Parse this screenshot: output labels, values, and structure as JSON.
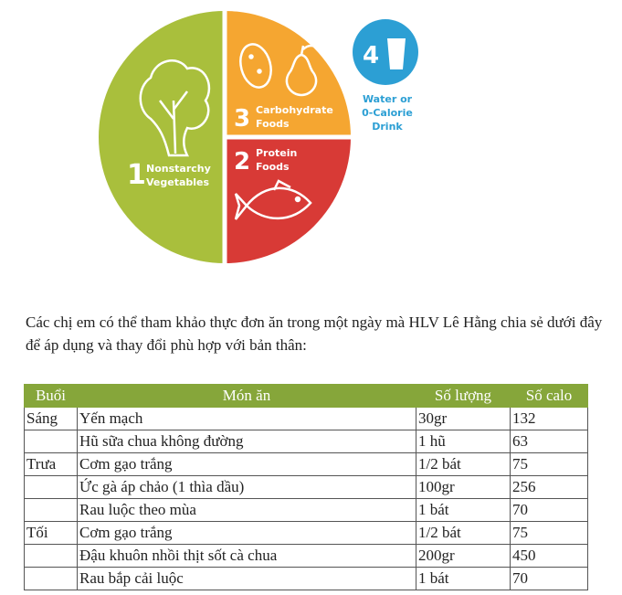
{
  "plate": {
    "sections": [
      {
        "number": "1",
        "lines": [
          "Nonstarchy",
          "Vegetables"
        ]
      },
      {
        "number": "3",
        "lines": [
          "Carbohydrate",
          "Foods"
        ]
      },
      {
        "number": "2",
        "lines": [
          "Protein",
          "Foods"
        ]
      },
      {
        "number": "4",
        "lines": [
          "Water or",
          "0-Calorie",
          "Drink"
        ]
      }
    ]
  },
  "intro": "Các chị em có thể tham khảo thực đơn ăn trong một ngày mà HLV Lê Hằng chia sẻ dưới đây để áp dụng và thay đổi phù hợp với bản thân:",
  "table": {
    "header": [
      "Buổi",
      "Món ăn",
      "Số lượng",
      "Số calo"
    ],
    "rows": [
      {
        "meal": "Sáng",
        "dish": "Yến mạch",
        "amount": "30gr",
        "calories": "132"
      },
      {
        "dish": "Hũ sữa chua không đường",
        "amount": "1 hũ",
        "calories": "63"
      },
      {
        "meal": "Trưa",
        "dish": "Cơm gạo trắng",
        "amount": "1/2 bát",
        "calories": "75"
      },
      {
        "dish": "Ức gà áp chảo (1 thìa dầu)",
        "amount": "100gr",
        "calories": "256"
      },
      {
        "dish": "Rau luộc theo mùa",
        "amount": "1 bát",
        "calories": "70"
      },
      {
        "meal": "Tối",
        "dish": "Cơm gạo trắng",
        "amount": "1/2 bát",
        "calories": "75"
      },
      {
        "dish": "Đậu khuôn nhồi thịt sốt cà chua",
        "amount": "200gr",
        "calories": "450"
      },
      {
        "dish": "Rau bắp cải luộc",
        "amount": "1 bát",
        "calories": "70"
      }
    ]
  }
}
